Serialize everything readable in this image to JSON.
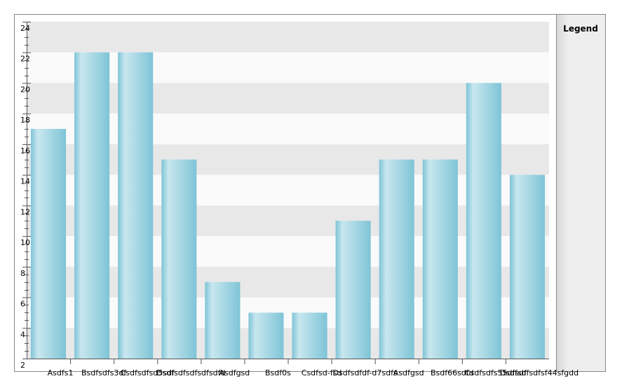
{
  "chart_data": {
    "type": "bar",
    "categories": [
      "Asdfs1",
      "Bsdfsdfs3df",
      "Csdfsdfsd5sdf",
      "Dsdfsdfsdfsdfsdfd",
      "Asdfgsd",
      "Bsdf0s",
      "Csdfsd-fsd",
      "Dsdfsdfdf-d7sdfs",
      "Asdfgsd",
      "Bsdf66sdfd",
      "Csdfsdfs55dfsdf",
      "Dsdfsdfsdfsf44sfgdd"
    ],
    "values": [
      17,
      22,
      22,
      15,
      7,
      5,
      5,
      11,
      15,
      15,
      20,
      14
    ],
    "color": "#7ec4d6",
    "ylim": [
      2,
      24
    ],
    "yticks": [
      2,
      4,
      6,
      8,
      10,
      12,
      14,
      16,
      18,
      20,
      22,
      24
    ],
    "grid": true,
    "legend_title": "Legend"
  }
}
